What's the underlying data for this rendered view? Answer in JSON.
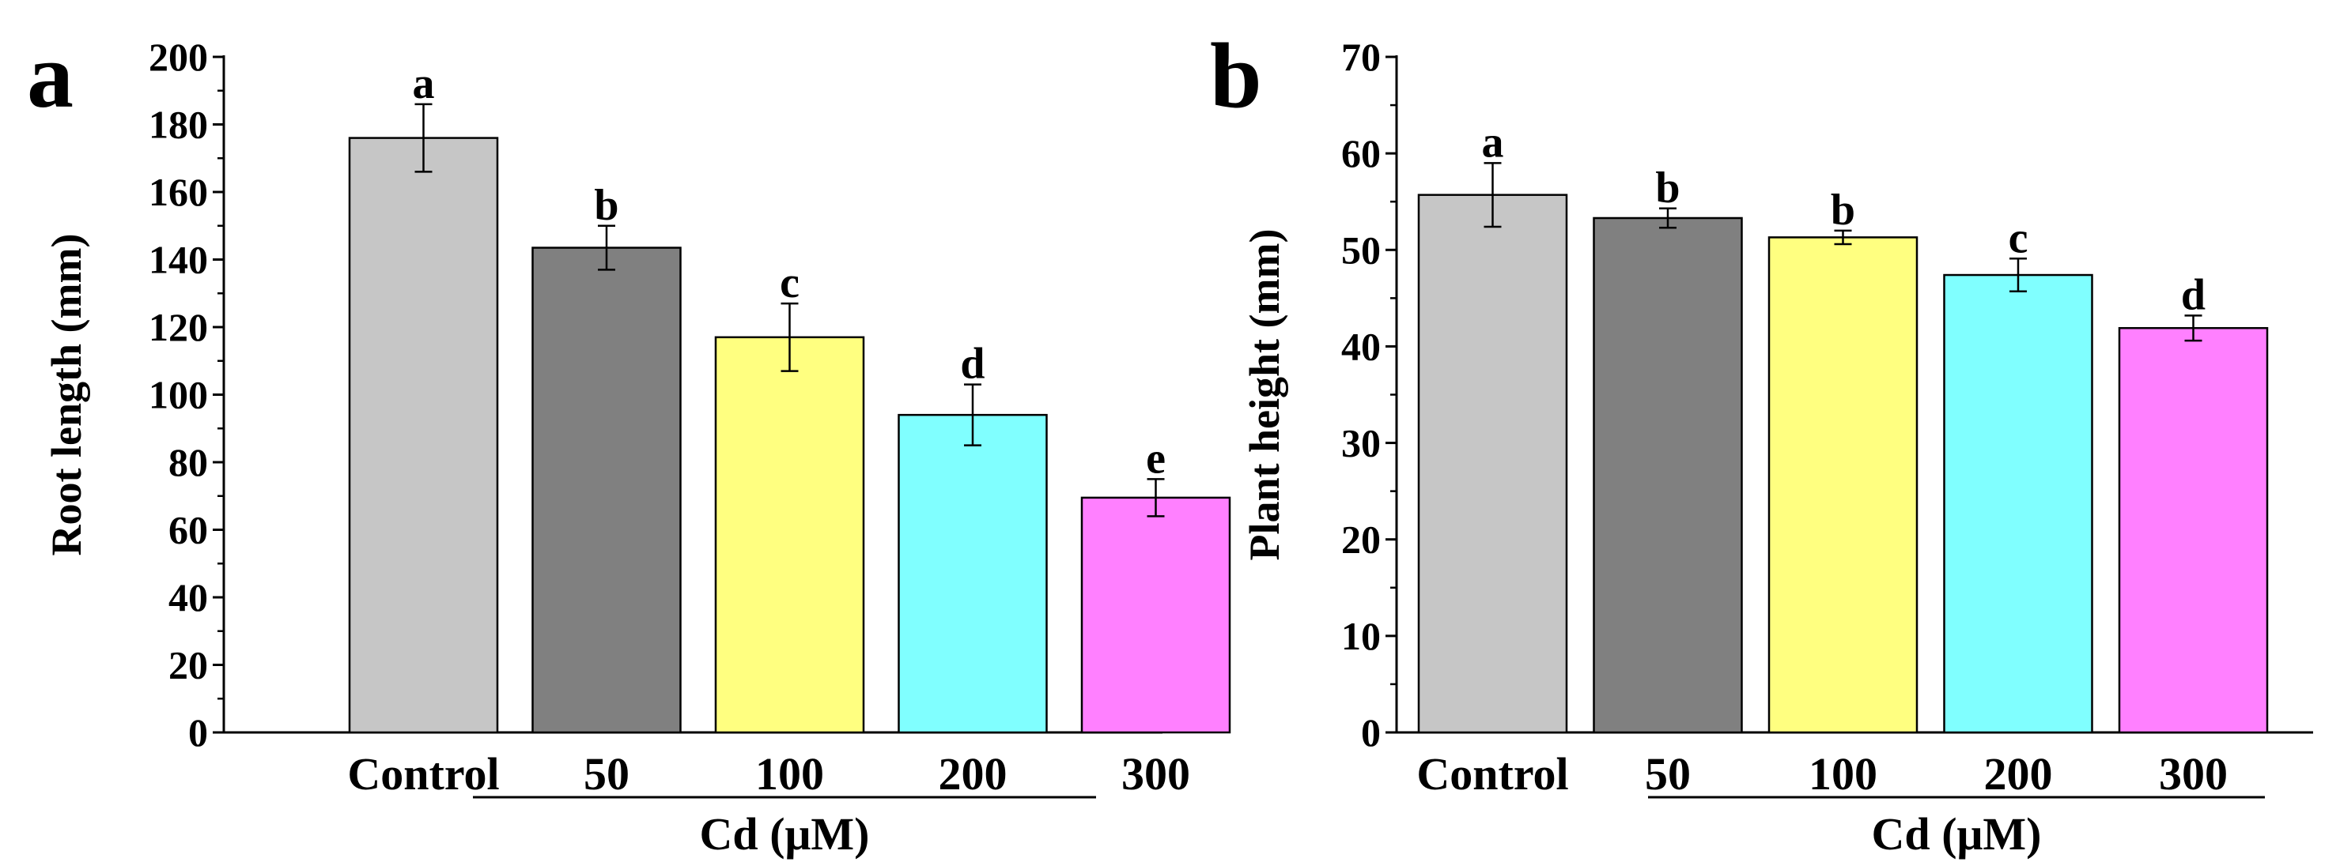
{
  "chart_data": [
    {
      "panel_label": "a",
      "type": "bar",
      "title": "",
      "xlabel": "Cd (μM)",
      "ylabel": "Root length (mm)",
      "ylim": [
        0,
        200
      ],
      "yticks": [
        "0",
        "20",
        "40",
        "60",
        "80",
        "100",
        "120",
        "140",
        "160",
        "180",
        "200"
      ],
      "categories": [
        "Control",
        "50",
        "100",
        "200",
        "300"
      ],
      "values": [
        176,
        143.5,
        117,
        94,
        69.5
      ],
      "errors": [
        10,
        6.5,
        10,
        9,
        5.5
      ],
      "significance": [
        "a",
        "b",
        "c",
        "d",
        "e"
      ],
      "colors": [
        "#c6c6c6",
        "#808080",
        "#ffff80",
        "#80ffff",
        "#ff80ff"
      ],
      "grid": false,
      "legend": "none"
    },
    {
      "panel_label": "b",
      "type": "bar",
      "title": "",
      "xlabel": "Cd (μM)",
      "ylabel": "Plant height (mm)",
      "ylim": [
        0,
        70
      ],
      "yticks": [
        "0",
        "10",
        "20",
        "30",
        "40",
        "50",
        "60",
        "70"
      ],
      "categories": [
        "Control",
        "50",
        "100",
        "200",
        "300"
      ],
      "values": [
        55.7,
        53.3,
        51.3,
        47.4,
        41.9
      ],
      "errors": [
        3.3,
        1.0,
        0.7,
        1.7,
        1.3
      ],
      "significance": [
        "a",
        "b",
        "b",
        "c",
        "d"
      ],
      "colors": [
        "#c6c6c6",
        "#808080",
        "#ffff80",
        "#80ffff",
        "#ff80ff"
      ],
      "grid": false,
      "legend": "none"
    }
  ]
}
